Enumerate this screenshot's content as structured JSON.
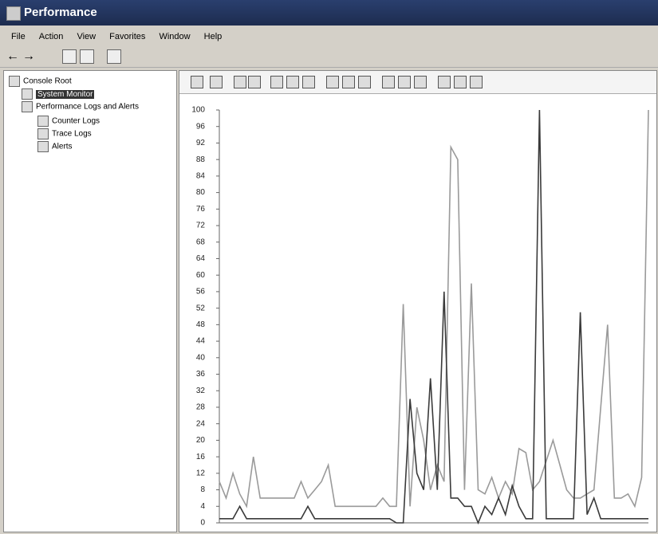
{
  "window": {
    "title": "Performance"
  },
  "menu": [
    "File",
    "Action",
    "View",
    "Favorites",
    "Window",
    "Help"
  ],
  "tree": [
    "Console Root",
    "System Monitor",
    "Performance Logs and Alerts",
    "Counter Logs",
    "Trace Logs",
    "Alerts"
  ],
  "chart_data": {
    "type": "line",
    "ylim": [
      0,
      100
    ],
    "yticks": [
      0,
      4,
      8,
      12,
      16,
      20,
      24,
      28,
      32,
      36,
      40,
      44,
      48,
      52,
      56,
      60,
      64,
      68,
      72,
      76,
      80,
      84,
      88,
      92,
      96,
      100
    ],
    "grid": false,
    "series": [
      {
        "color": "#9a9a9a",
        "values": [
          10,
          6,
          12,
          7,
          4,
          16,
          6,
          6,
          6,
          6,
          6,
          6,
          10,
          6,
          8,
          10,
          14,
          4,
          4,
          4,
          4,
          4,
          4,
          4,
          6,
          4,
          4,
          53,
          4,
          28,
          20,
          8,
          14,
          10,
          91,
          88,
          8,
          58,
          8,
          7,
          11,
          6,
          10,
          7,
          18,
          17,
          8,
          10,
          15,
          20,
          14,
          8,
          6,
          6,
          7,
          8,
          28,
          48,
          6,
          6,
          7,
          4,
          11,
          100
        ]
      },
      {
        "color": "#3a3a3a",
        "values": [
          1,
          1,
          1,
          4,
          1,
          1,
          1,
          1,
          1,
          1,
          1,
          1,
          1,
          4,
          1,
          1,
          1,
          1,
          1,
          1,
          1,
          1,
          1,
          1,
          1,
          1,
          0,
          0,
          30,
          12,
          8,
          35,
          8,
          56,
          6,
          6,
          4,
          4,
          0,
          4,
          2,
          6,
          2,
          9,
          4,
          1,
          1,
          100,
          1,
          1,
          1,
          1,
          1,
          51,
          2,
          6,
          1,
          1,
          1,
          1,
          1,
          1,
          1,
          1
        ]
      }
    ]
  }
}
